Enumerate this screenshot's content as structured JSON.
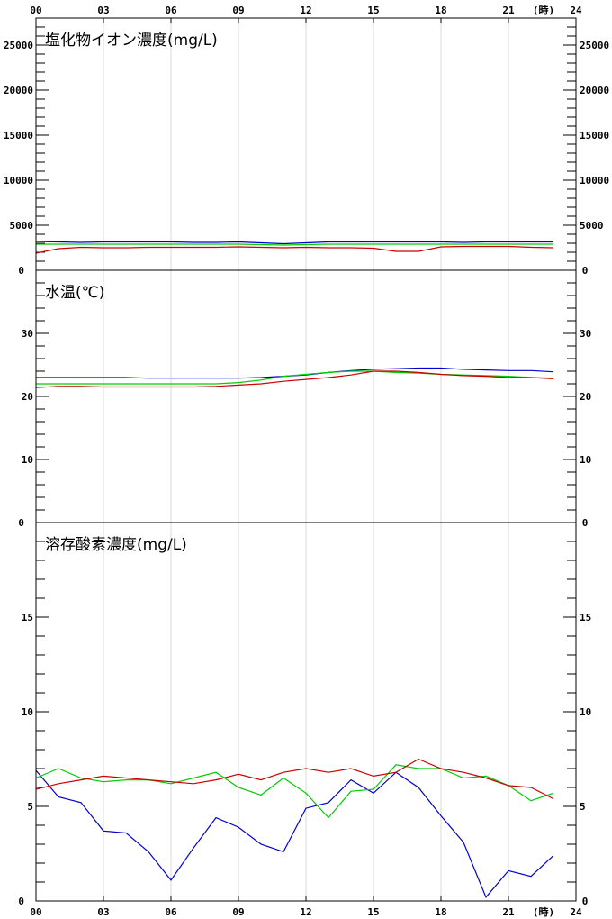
{
  "chart_data": {
    "type": "line",
    "x_ticks": [
      "00",
      "03",
      "06",
      "09",
      "12",
      "15",
      "18",
      "21",
      "24"
    ],
    "x_unit": "(時)",
    "x": [
      0,
      1,
      2,
      3,
      4,
      5,
      6,
      7,
      8,
      9,
      10,
      11,
      12,
      13,
      14,
      15,
      16,
      17,
      18,
      19,
      20,
      21,
      22,
      23
    ],
    "xlim": [
      0,
      24
    ],
    "series_colors": [
      "#0000cc",
      "#00cc00",
      "#cc0000"
    ],
    "grid": true,
    "panels": [
      {
        "title": "塩化物イオン濃度(mg/L)",
        "ylim": [
          0,
          28000
        ],
        "y_ticks": [
          "0",
          "5000",
          "10000",
          "15000",
          "20000",
          "25000"
        ],
        "series": [
          {
            "color": "#0000cc",
            "values": [
              3200,
              3150,
              3100,
              3150,
              3150,
              3150,
              3150,
              3100,
              3100,
              3150,
              3050,
              2950,
              3050,
              3150,
              3150,
              3150,
              3150,
              3150,
              3150,
              3100,
              3150,
              3150,
              3150,
              3150
            ]
          },
          {
            "color": "#00cc00",
            "values": [
              2900,
              2900,
              2900,
              2900,
              2900,
              2900,
              2900,
              2900,
              2900,
              2900,
              2850,
              2800,
              2850,
              2900,
              2900,
              2900,
              2900,
              2900,
              2900,
              2900,
              2900,
              2900,
              2900,
              2900
            ]
          },
          {
            "color": "#cc0000",
            "values": [
              1900,
              2400,
              2550,
              2500,
              2500,
              2550,
              2550,
              2550,
              2550,
              2600,
              2550,
              2500,
              2550,
              2500,
              2500,
              2450,
              2100,
              2100,
              2600,
              2650,
              2650,
              2650,
              2550,
              2500
            ]
          }
        ]
      },
      {
        "title": "水温(℃)",
        "ylim": [
          0,
          40
        ],
        "y_ticks": [
          "0",
          "10",
          "20",
          "30"
        ],
        "series": [
          {
            "color": "#0000cc",
            "values": [
              23.0,
              23.0,
              23.0,
              23.0,
              23.0,
              22.9,
              22.9,
              22.9,
              22.9,
              22.9,
              23.0,
              23.2,
              23.4,
              23.8,
              24.1,
              24.3,
              24.4,
              24.5,
              24.5,
              24.3,
              24.2,
              24.1,
              24.1,
              23.9
            ]
          },
          {
            "color": "#00cc00",
            "values": [
              22.0,
              22.0,
              22.0,
              22.0,
              22.0,
              22.0,
              22.0,
              22.0,
              22.0,
              22.2,
              22.6,
              23.2,
              23.5,
              23.8,
              24.0,
              24.0,
              23.8,
              23.7,
              23.5,
              23.4,
              23.3,
              23.2,
              23.0,
              22.9
            ]
          },
          {
            "color": "#cc0000",
            "values": [
              21.4,
              21.6,
              21.6,
              21.5,
              21.5,
              21.5,
              21.5,
              21.5,
              21.6,
              21.8,
              22.0,
              22.4,
              22.7,
              23.0,
              23.4,
              24.0,
              24.0,
              23.8,
              23.5,
              23.3,
              23.2,
              23.0,
              23.0,
              22.8
            ]
          }
        ]
      },
      {
        "title": "溶存酸素濃度(mg/L)",
        "ylim": [
          0,
          20
        ],
        "y_ticks": [
          "0",
          "5",
          "10",
          "15"
        ],
        "series": [
          {
            "color": "#0000cc",
            "values": [
              6.9,
              5.5,
              5.2,
              3.7,
              3.6,
              2.6,
              1.1,
              2.8,
              4.4,
              3.9,
              3.0,
              2.6,
              4.9,
              5.2,
              6.4,
              5.7,
              6.8,
              6.0,
              4.5,
              3.1,
              0.2,
              1.6,
              1.3,
              2.4
            ]
          },
          {
            "color": "#00cc00",
            "values": [
              6.5,
              7.0,
              6.5,
              6.3,
              6.4,
              6.4,
              6.2,
              6.5,
              6.8,
              6.0,
              5.6,
              6.5,
              5.7,
              4.4,
              5.8,
              5.9,
              7.2,
              7.0,
              7.0,
              6.5,
              6.6,
              6.1,
              5.3,
              5.7
            ]
          },
          {
            "color": "#cc0000",
            "values": [
              5.9,
              6.2,
              6.4,
              6.6,
              6.5,
              6.4,
              6.3,
              6.2,
              6.4,
              6.7,
              6.4,
              6.8,
              7.0,
              6.8,
              7.0,
              6.6,
              6.8,
              7.5,
              7.0,
              6.8,
              6.5,
              6.1,
              6.0,
              5.4
            ]
          }
        ]
      }
    ]
  }
}
